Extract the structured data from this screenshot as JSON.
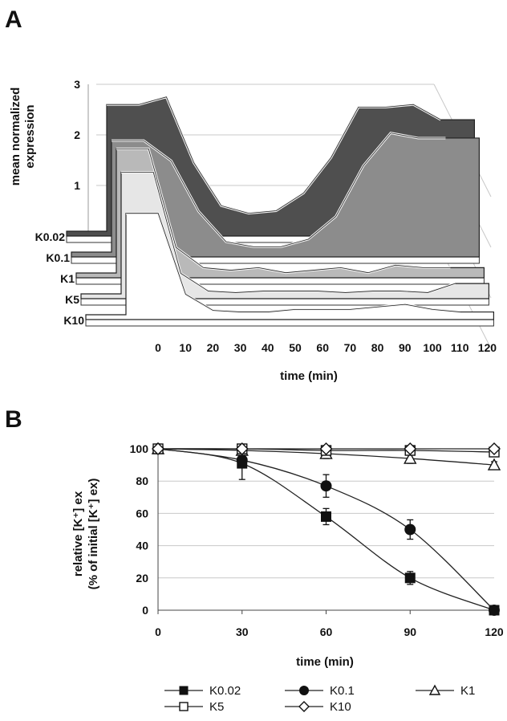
{
  "chart_data": [
    {
      "panel": "A",
      "type": "area",
      "style": "3d-stacked",
      "title": "",
      "xlabel": "time (min)",
      "ylabel": "mean normalized expression",
      "ylim": [
        0,
        3
      ],
      "yticks": [
        "0",
        "1",
        "2",
        "3"
      ],
      "x": [
        "0",
        "10",
        "20",
        "30",
        "40",
        "50",
        "60",
        "70",
        "80",
        "90",
        "100",
        "110",
        "120"
      ],
      "series": [
        {
          "name": "K0.02",
          "color": "#4f4f4f",
          "values": [
            0,
            2.6,
            2.75,
            1.45,
            0.6,
            0.45,
            0.5,
            0.85,
            1.55,
            2.55,
            2.55,
            2.6,
            2.3
          ]
        },
        {
          "name": "K0.1",
          "color": "#8c8c8c",
          "values": [
            0,
            2.3,
            1.9,
            0.9,
            0.3,
            0.2,
            0.2,
            0.35,
            0.8,
            1.8,
            2.45,
            2.35,
            2.35
          ]
        },
        {
          "name": "K1",
          "color": "#b9b9b9",
          "values": [
            0,
            2.55,
            0.6,
            0.2,
            0.15,
            0.2,
            0.1,
            0.15,
            0.2,
            0.1,
            0.25,
            0.2,
            0.2
          ]
        },
        {
          "name": "K5",
          "color": "#e6e6e6",
          "values": [
            0,
            2.5,
            0.5,
            0.15,
            0.12,
            0.15,
            0.15,
            0.15,
            0.12,
            0.15,
            0.15,
            0.12,
            0.3
          ]
        },
        {
          "name": "K10",
          "color": "#ffffff",
          "values": [
            0,
            2.1,
            0.5,
            0.18,
            0.15,
            0.15,
            0.2,
            0.2,
            0.2,
            0.25,
            0.3,
            0.2,
            0.15
          ]
        }
      ]
    },
    {
      "panel": "B",
      "type": "line",
      "title": "",
      "xlabel": "time (min)",
      "ylabel_line1": "relative [K⁺] ex",
      "ylabel_line2": "(% of initial [K⁺] ex)",
      "xlim": [
        0,
        120
      ],
      "ylim": [
        0,
        100
      ],
      "xticks": [
        "0",
        "30",
        "60",
        "90",
        "120"
      ],
      "yticks": [
        "0",
        "20",
        "40",
        "60",
        "80",
        "100"
      ],
      "x": [
        0,
        30,
        60,
        90,
        120
      ],
      "series": [
        {
          "name": "K0.02",
          "marker": "filled-square",
          "values": [
            100,
            91,
            58,
            20,
            0
          ],
          "errors": [
            0,
            10,
            5,
            4,
            0
          ]
        },
        {
          "name": "K0.1",
          "marker": "filled-circle",
          "values": [
            100,
            93,
            77,
            50,
            0
          ],
          "errors": [
            0,
            3,
            7,
            6,
            0
          ]
        },
        {
          "name": "K1",
          "marker": "open-triangle",
          "values": [
            100,
            99,
            97,
            94,
            90
          ],
          "errors": [
            0,
            1,
            3,
            3,
            2
          ]
        },
        {
          "name": "K5",
          "marker": "open-square",
          "values": [
            100,
            100,
            99,
            99,
            98
          ],
          "errors": [
            0,
            1,
            2,
            2,
            1
          ]
        },
        {
          "name": "K10",
          "marker": "open-diamond",
          "values": [
            100,
            100,
            100,
            100,
            100
          ],
          "errors": [
            0,
            0,
            1,
            1,
            1
          ]
        }
      ],
      "legend_position": "bottom"
    }
  ],
  "labels": {
    "panel_a": "A",
    "panel_b": "B"
  }
}
